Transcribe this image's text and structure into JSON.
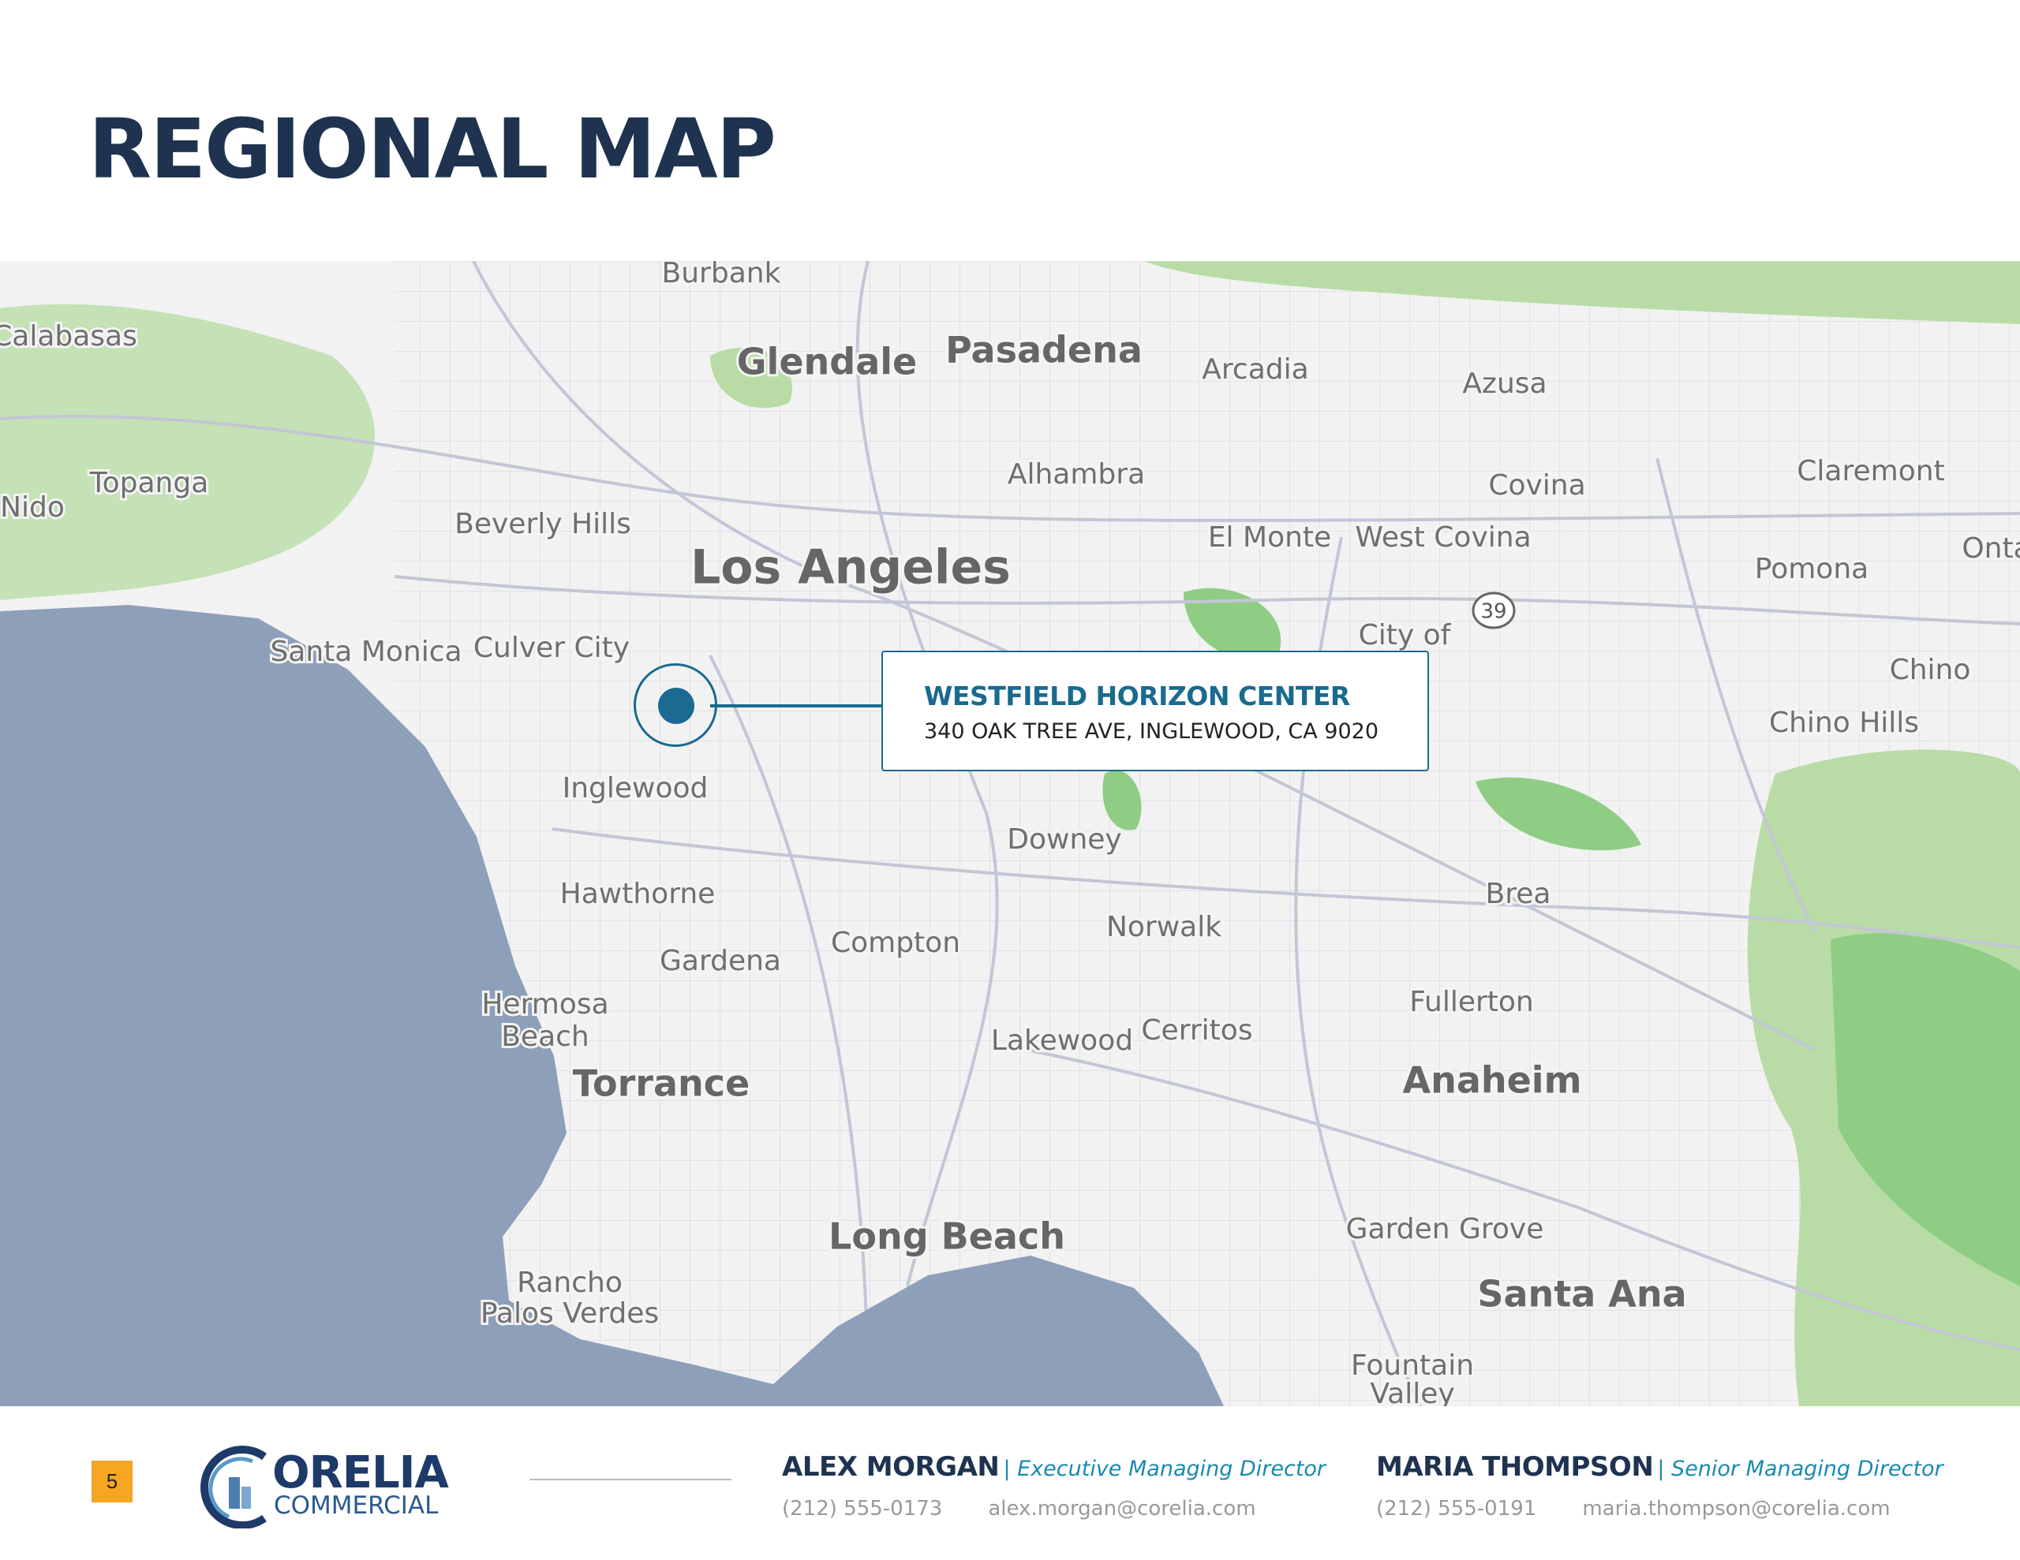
{
  "page": {
    "title": "REGIONAL MAP",
    "page_number": "5"
  },
  "colors": {
    "title": "#1f3350",
    "accent": "#1a6a8f",
    "badge": "#f5a623",
    "ocean": "#8e9fba",
    "park": "#a8d5a0"
  },
  "map": {
    "labels": [
      "Burbank",
      "Calabasas",
      "Glendale",
      "Pasadena",
      "Arcadia",
      "Azusa",
      "Topanga",
      "Nido",
      "Alhambra",
      "Covina",
      "Claremont",
      "Beverly Hills",
      "Los Angeles",
      "El Monte",
      "West Covina",
      "Onta",
      "Pomona",
      "Santa Monica",
      "Culver City",
      "City of",
      "Chino",
      "Chino Hills",
      "Inglewood",
      "Downey",
      "Hawthorne",
      "Brea",
      "Norwalk",
      "Compton",
      "Gardena",
      "Fullerton",
      "Hermosa",
      "Beach",
      "Lakewood",
      "Cerritos",
      "Torrance",
      "Anaheim",
      "Long Beach",
      "Garden Grove",
      "Rancho",
      "Palos Verdes",
      "Santa Ana",
      "Fountain",
      "Valley"
    ],
    "highway_shield": "39",
    "marker_icon": "location-pin-icon"
  },
  "callout": {
    "name": "WESTFIELD HORIZON CENTER",
    "address": "340 OAK TREE AVE, INGLEWOOD, CA 9020"
  },
  "footer": {
    "logo": {
      "line1": "ORELIA",
      "line2": "COMMERCIAL"
    },
    "contacts": [
      {
        "name": "ALEX MORGAN",
        "role": "| Executive Managing Director",
        "phone": "(212) 555-0173",
        "email": "alex.morgan@corelia.com"
      },
      {
        "name": "MARIA THOMPSON",
        "role": "| Senior Managing Director",
        "phone": "(212) 555-0191",
        "email": "maria.thompson@corelia.com"
      }
    ]
  }
}
